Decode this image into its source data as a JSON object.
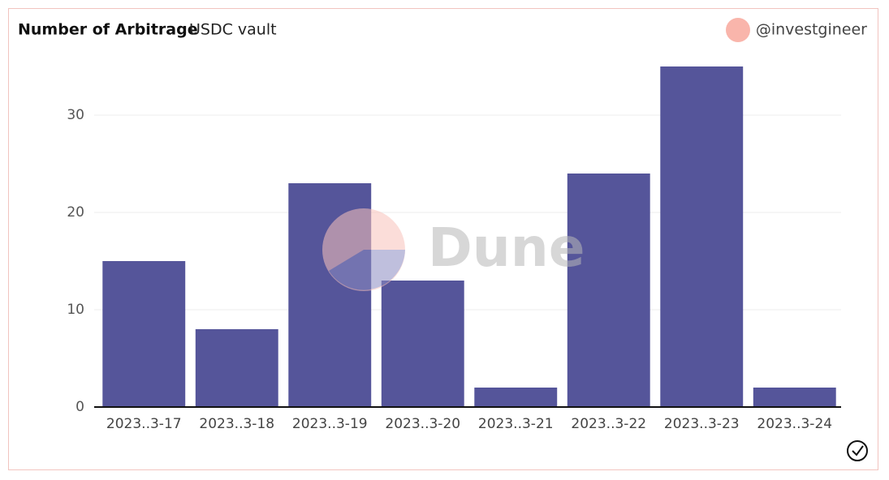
{
  "chart_data": {
    "type": "bar",
    "title": "Number of Arbitrage",
    "subtitle": "USDC vault",
    "author": "@investgineer",
    "watermark": "Dune",
    "categories": [
      "2023..3-17",
      "2023..3-18",
      "2023..3-19",
      "2023..3-20",
      "2023..3-21",
      "2023..3-22",
      "2023..3-23",
      "2023..3-24"
    ],
    "values": [
      15,
      8,
      23,
      13,
      2,
      24,
      35,
      2
    ],
    "color": "#55559a",
    "ylim": [
      0,
      35
    ],
    "yticks": [
      0,
      10,
      20,
      30
    ],
    "grid": true
  }
}
